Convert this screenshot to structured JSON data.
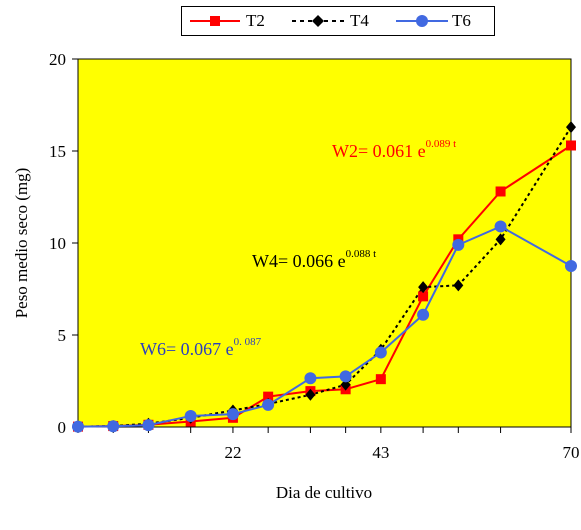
{
  "chart_data": {
    "type": "line",
    "xlabel": "Dia de cultivo",
    "ylabel": "Peso medio seco (mg)",
    "xlim": [
      0,
      70
    ],
    "ylim": [
      0,
      20
    ],
    "x_ticks": [
      "22",
      "43",
      "70"
    ],
    "y_ticks": [
      "0",
      "5",
      "10",
      "15",
      "20"
    ],
    "background": "#FFFF00",
    "legend_position": "top-center",
    "series": [
      {
        "name": "T2",
        "color": "#FF0000",
        "marker": "square",
        "dash": "solid",
        "x": [
          0,
          5,
          10,
          16,
          22,
          27,
          33,
          38,
          43,
          49,
          54,
          60,
          70
        ],
        "y": [
          0.02,
          0.05,
          0.12,
          0.3,
          0.5,
          1.65,
          1.95,
          2.05,
          2.6,
          7.1,
          10.2,
          12.8,
          15.3
        ]
      },
      {
        "name": "T4",
        "color": "#000000",
        "marker": "diamond",
        "dash": "dotted",
        "x": [
          0,
          5,
          10,
          16,
          22,
          27,
          33,
          38,
          43,
          49,
          54,
          60,
          70
        ],
        "y": [
          0.02,
          0.05,
          0.18,
          0.5,
          0.9,
          1.25,
          1.75,
          2.3,
          4.2,
          7.6,
          7.7,
          10.2,
          16.3
        ]
      },
      {
        "name": "T6",
        "color": "#4169E1",
        "marker": "circle",
        "dash": "solid",
        "x": [
          0,
          5,
          10,
          16,
          22,
          27,
          33,
          38,
          43,
          49,
          54,
          60,
          70
        ],
        "y": [
          0.02,
          0.04,
          0.1,
          0.6,
          0.7,
          1.2,
          2.65,
          2.75,
          4.05,
          6.1,
          9.9,
          10.9,
          8.75
        ]
      }
    ],
    "annotations": [
      {
        "base": "W2= 0.061 e",
        "exp": "0.089  t",
        "color": "#FF0000"
      },
      {
        "base": "W4= 0.066 e",
        "exp": "0.088 t",
        "color": "#000000"
      },
      {
        "base": "W6= 0.067 e",
        "exp": "0. 087",
        "color": "#2B3FBF"
      }
    ]
  }
}
